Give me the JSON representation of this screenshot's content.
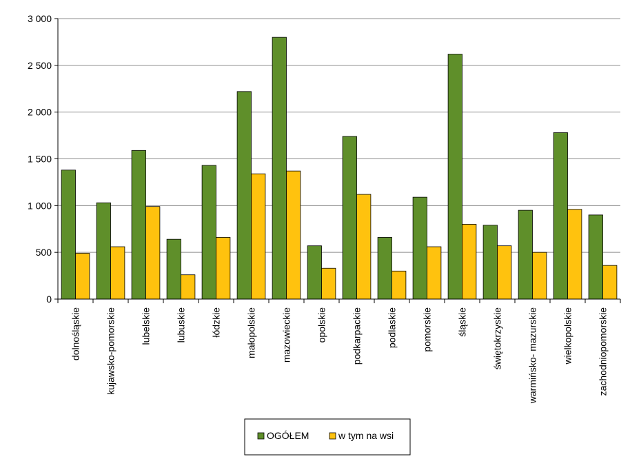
{
  "chart_data": {
    "type": "bar",
    "categories": [
      "dolnośląskie",
      "kujawsko-pomorskie",
      "lubelskie",
      "lubuskie",
      "łódzkie",
      "małopolskie",
      "mazowieckie",
      "opolskie",
      "podkarpackie",
      "podlaskie",
      "pomorskie",
      "śląskie",
      "świętokrzyskie",
      "warmińsko- mazurskie",
      "wielkopolskie",
      "zachodniopomorskie"
    ],
    "series": [
      {
        "name": "OGÓŁEM",
        "color": "#5f8f2a",
        "values": [
          1380,
          1030,
          1590,
          640,
          1430,
          2220,
          2800,
          570,
          1740,
          660,
          1090,
          2620,
          790,
          950,
          1780,
          900
        ]
      },
      {
        "name": "w tym na wsi",
        "color": "#ffc20e",
        "values": [
          490,
          560,
          990,
          260,
          660,
          1340,
          1370,
          330,
          1120,
          300,
          560,
          800,
          570,
          500,
          960,
          360
        ]
      }
    ],
    "ylim": [
      0,
      3000
    ],
    "yticks": [
      "0",
      "500",
      "1 000",
      "1 500",
      "2 000",
      "2 500",
      "3 000"
    ],
    "ytick_values": [
      0,
      500,
      1000,
      1500,
      2000,
      2500,
      3000
    ],
    "grid": true,
    "legend_position": "bottom",
    "title": "",
    "xlabel": "",
    "ylabel": ""
  }
}
